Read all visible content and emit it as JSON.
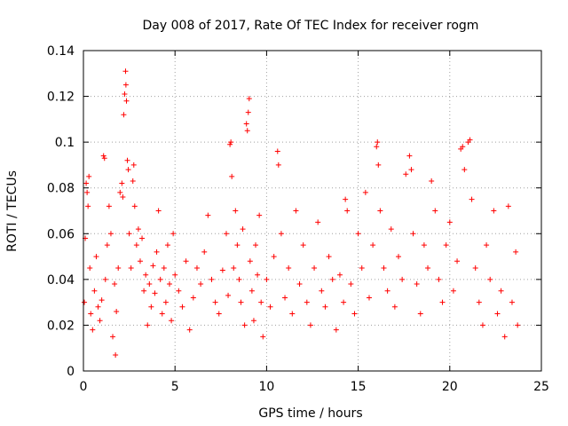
{
  "chart_data": {
    "type": "scatter",
    "title": "Day 008 of 2017, Rate Of TEC Index for receiver rogm",
    "xlabel": "GPS time / hours",
    "ylabel": "ROTI / TECUs",
    "xlim": [
      0,
      25
    ],
    "ylim": [
      0,
      0.14
    ],
    "xticks": [
      "0",
      "5",
      "10",
      "15",
      "20",
      "25"
    ],
    "yticks": [
      "0",
      "0.02",
      "0.04",
      "0.06",
      "0.08",
      "0.1",
      "0.12",
      "0.14"
    ],
    "grid": true,
    "marker": "+",
    "color": "#ff0000",
    "series": [
      {
        "points": [
          [
            0.05,
            0.03
          ],
          [
            0.1,
            0.058
          ],
          [
            0.15,
            0.082
          ],
          [
            0.2,
            0.078
          ],
          [
            0.25,
            0.072
          ],
          [
            0.3,
            0.085
          ],
          [
            0.35,
            0.045
          ],
          [
            0.4,
            0.025
          ],
          [
            0.5,
            0.018
          ],
          [
            0.6,
            0.035
          ],
          [
            0.7,
            0.05
          ],
          [
            0.8,
            0.028
          ],
          [
            0.9,
            0.022
          ],
          [
            1.0,
            0.031
          ],
          [
            1.1,
            0.094
          ],
          [
            1.15,
            0.093
          ],
          [
            1.2,
            0.04
          ],
          [
            1.3,
            0.055
          ],
          [
            1.4,
            0.072
          ],
          [
            1.5,
            0.06
          ],
          [
            1.6,
            0.015
          ],
          [
            1.7,
            0.038
          ],
          [
            1.75,
            0.007
          ],
          [
            1.8,
            0.026
          ],
          [
            1.9,
            0.045
          ],
          [
            2.0,
            0.078
          ],
          [
            2.1,
            0.082
          ],
          [
            2.15,
            0.076
          ],
          [
            2.2,
            0.112
          ],
          [
            2.25,
            0.121
          ],
          [
            2.3,
            0.131
          ],
          [
            2.32,
            0.125
          ],
          [
            2.35,
            0.118
          ],
          [
            2.4,
            0.092
          ],
          [
            2.45,
            0.088
          ],
          [
            2.5,
            0.06
          ],
          [
            2.6,
            0.045
          ],
          [
            2.7,
            0.083
          ],
          [
            2.75,
            0.09
          ],
          [
            2.8,
            0.072
          ],
          [
            2.9,
            0.055
          ],
          [
            3.0,
            0.062
          ],
          [
            3.1,
            0.048
          ],
          [
            3.2,
            0.058
          ],
          [
            3.3,
            0.035
          ],
          [
            3.4,
            0.042
          ],
          [
            3.5,
            0.02
          ],
          [
            3.6,
            0.038
          ],
          [
            3.7,
            0.028
          ],
          [
            3.8,
            0.046
          ],
          [
            3.9,
            0.034
          ],
          [
            4.0,
            0.052
          ],
          [
            4.1,
            0.07
          ],
          [
            4.2,
            0.04
          ],
          [
            4.3,
            0.025
          ],
          [
            4.4,
            0.045
          ],
          [
            4.5,
            0.03
          ],
          [
            4.6,
            0.055
          ],
          [
            4.7,
            0.038
          ],
          [
            4.8,
            0.022
          ],
          [
            4.9,
            0.06
          ],
          [
            5.0,
            0.042
          ],
          [
            5.2,
            0.035
          ],
          [
            5.4,
            0.028
          ],
          [
            5.6,
            0.048
          ],
          [
            5.8,
            0.018
          ],
          [
            6.0,
            0.032
          ],
          [
            6.2,
            0.045
          ],
          [
            6.4,
            0.038
          ],
          [
            6.6,
            0.052
          ],
          [
            6.8,
            0.068
          ],
          [
            7.0,
            0.04
          ],
          [
            7.2,
            0.03
          ],
          [
            7.4,
            0.025
          ],
          [
            7.6,
            0.044
          ],
          [
            7.8,
            0.06
          ],
          [
            7.9,
            0.033
          ],
          [
            8.0,
            0.099
          ],
          [
            8.05,
            0.1
          ],
          [
            8.1,
            0.085
          ],
          [
            8.2,
            0.045
          ],
          [
            8.3,
            0.07
          ],
          [
            8.4,
            0.055
          ],
          [
            8.5,
            0.04
          ],
          [
            8.6,
            0.03
          ],
          [
            8.7,
            0.062
          ],
          [
            8.8,
            0.02
          ],
          [
            8.9,
            0.108
          ],
          [
            8.95,
            0.105
          ],
          [
            9.0,
            0.113
          ],
          [
            9.05,
            0.119
          ],
          [
            9.1,
            0.048
          ],
          [
            9.2,
            0.035
          ],
          [
            9.3,
            0.022
          ],
          [
            9.4,
            0.055
          ],
          [
            9.5,
            0.042
          ],
          [
            9.6,
            0.068
          ],
          [
            9.7,
            0.03
          ],
          [
            9.8,
            0.015
          ],
          [
            10.0,
            0.04
          ],
          [
            10.2,
            0.028
          ],
          [
            10.4,
            0.05
          ],
          [
            10.6,
            0.096
          ],
          [
            10.65,
            0.09
          ],
          [
            10.8,
            0.06
          ],
          [
            11.0,
            0.032
          ],
          [
            11.2,
            0.045
          ],
          [
            11.4,
            0.025
          ],
          [
            11.6,
            0.07
          ],
          [
            11.8,
            0.038
          ],
          [
            12.0,
            0.055
          ],
          [
            12.2,
            0.03
          ],
          [
            12.4,
            0.02
          ],
          [
            12.6,
            0.045
          ],
          [
            12.8,
            0.065
          ],
          [
            13.0,
            0.035
          ],
          [
            13.2,
            0.028
          ],
          [
            13.4,
            0.05
          ],
          [
            13.6,
            0.04
          ],
          [
            13.8,
            0.018
          ],
          [
            14.0,
            0.042
          ],
          [
            14.2,
            0.03
          ],
          [
            14.3,
            0.075
          ],
          [
            14.4,
            0.07
          ],
          [
            14.6,
            0.038
          ],
          [
            14.8,
            0.025
          ],
          [
            15.0,
            0.06
          ],
          [
            15.2,
            0.045
          ],
          [
            15.4,
            0.078
          ],
          [
            15.6,
            0.032
          ],
          [
            15.8,
            0.055
          ],
          [
            16.0,
            0.098
          ],
          [
            16.05,
            0.1
          ],
          [
            16.1,
            0.09
          ],
          [
            16.2,
            0.07
          ],
          [
            16.4,
            0.045
          ],
          [
            16.6,
            0.035
          ],
          [
            16.8,
            0.062
          ],
          [
            17.0,
            0.028
          ],
          [
            17.2,
            0.05
          ],
          [
            17.4,
            0.04
          ],
          [
            17.6,
            0.086
          ],
          [
            17.8,
            0.094
          ],
          [
            17.9,
            0.088
          ],
          [
            18.0,
            0.06
          ],
          [
            18.2,
            0.038
          ],
          [
            18.4,
            0.025
          ],
          [
            18.6,
            0.055
          ],
          [
            18.8,
            0.045
          ],
          [
            19.0,
            0.083
          ],
          [
            19.2,
            0.07
          ],
          [
            19.4,
            0.04
          ],
          [
            19.6,
            0.03
          ],
          [
            19.8,
            0.055
          ],
          [
            20.0,
            0.065
          ],
          [
            20.2,
            0.035
          ],
          [
            20.4,
            0.048
          ],
          [
            20.6,
            0.097
          ],
          [
            20.7,
            0.098
          ],
          [
            20.8,
            0.088
          ],
          [
            21.0,
            0.1
          ],
          [
            21.1,
            0.101
          ],
          [
            21.2,
            0.075
          ],
          [
            21.4,
            0.045
          ],
          [
            21.6,
            0.03
          ],
          [
            21.8,
            0.02
          ],
          [
            22.0,
            0.055
          ],
          [
            22.2,
            0.04
          ],
          [
            22.4,
            0.07
          ],
          [
            22.6,
            0.025
          ],
          [
            22.8,
            0.035
          ],
          [
            23.0,
            0.015
          ],
          [
            23.2,
            0.072
          ],
          [
            23.4,
            0.03
          ],
          [
            23.6,
            0.052
          ],
          [
            23.7,
            0.02
          ]
        ]
      }
    ]
  }
}
